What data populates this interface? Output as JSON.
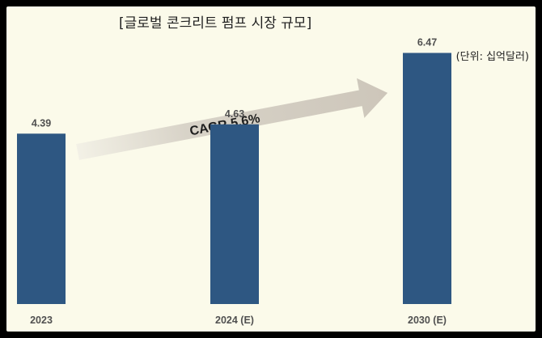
{
  "chart_data": {
    "type": "bar",
    "title": "[글로벌 콘크리트 펌프 시장 규모]",
    "unit_label": "(단위: 십억달러)",
    "categories": [
      "2023",
      "2024 (E)",
      "2030 (E)"
    ],
    "values": [
      4.39,
      4.63,
      6.47
    ],
    "value_labels": [
      "4.39",
      "4.63",
      "6.47"
    ],
    "ylim": [
      0,
      7.5
    ],
    "grid": false,
    "legend": "none",
    "annotation": "CAGR 5.6%",
    "bar_color": "#2e5782",
    "arrow_color": "#d3cdc2",
    "background": "#fbfaea"
  }
}
